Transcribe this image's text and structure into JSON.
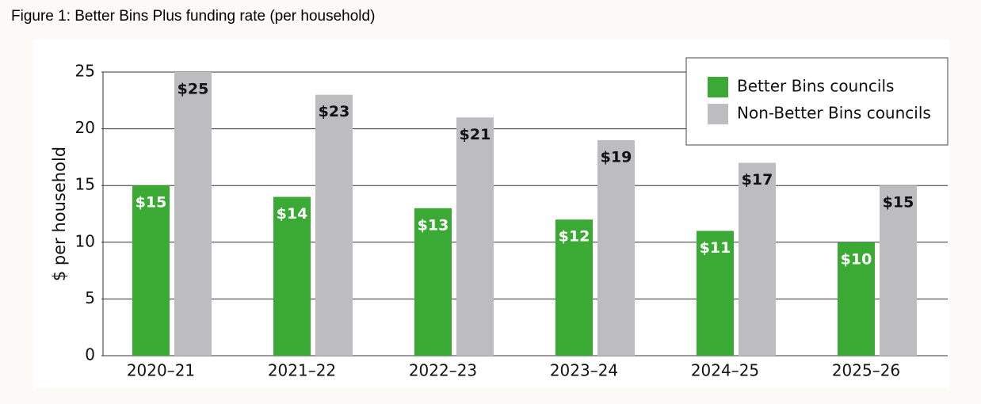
{
  "chart_data": {
    "type": "bar",
    "title": "Figure 1: Better Bins Plus funding rate (per household)",
    "y_label": "$ per household",
    "categories": [
      "2020–21",
      "2021–22",
      "2022–23",
      "2023–24",
      "2024–25",
      "2025–26"
    ],
    "series": [
      {
        "name": "Better Bins councils",
        "color": "#3aaa35",
        "values": [
          15,
          14,
          13,
          12,
          11,
          10
        ],
        "value_labels": [
          "$15",
          "$14",
          "$13",
          "$12",
          "$11",
          "$10"
        ]
      },
      {
        "name": "Non-Better Bins councils",
        "color": "#bdbdbf",
        "values": [
          25,
          23,
          21,
          19,
          17,
          15
        ],
        "value_labels": [
          "$25",
          "$23",
          "$21",
          "$19",
          "$17",
          "$15"
        ]
      }
    ],
    "ylim": [
      0,
      25
    ],
    "yticks": [
      0,
      5,
      10,
      15,
      20,
      25
    ],
    "grid": true,
    "legend": "top-right"
  }
}
